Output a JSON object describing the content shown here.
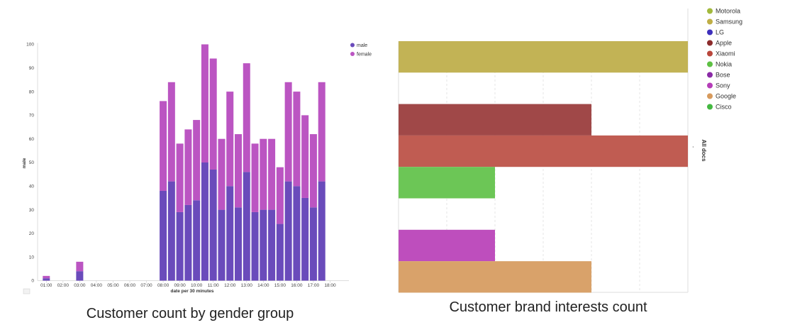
{
  "chart_data": [
    {
      "type": "bar",
      "stacked": true,
      "title": "Customer count by gender group",
      "xlabel": "date per 30 minutes",
      "ylabel": "male",
      "ylim": [
        0,
        100
      ],
      "yticks": [
        0,
        10,
        20,
        30,
        40,
        50,
        60,
        70,
        80,
        90,
        100
      ],
      "xtick_labels": [
        "01:00",
        "02:00",
        "03:00",
        "04:00",
        "05:00",
        "06:00",
        "07:00",
        "08:00",
        "09:00",
        "10:00",
        "11:00",
        "12:00",
        "13:00",
        "14:00",
        "15:00",
        "16:00",
        "17:00",
        "18:00"
      ],
      "categories": [
        "01:00",
        "01:30",
        "02:00",
        "02:30",
        "03:00",
        "03:30",
        "04:00",
        "04:30",
        "05:00",
        "05:30",
        "06:00",
        "06:30",
        "07:00",
        "07:30",
        "08:00",
        "08:30",
        "09:00",
        "09:30",
        "10:00",
        "10:30",
        "11:00",
        "11:30",
        "12:00",
        "12:30",
        "13:00",
        "13:30",
        "14:00",
        "14:30",
        "15:00",
        "15:30",
        "16:00",
        "16:30",
        "17:00",
        "17:30",
        "18:00"
      ],
      "series": [
        {
          "name": "male",
          "color": "#6a4bbb",
          "values": [
            1,
            0,
            0,
            0,
            4,
            0,
            0,
            0,
            0,
            0,
            0,
            0,
            0,
            0,
            38,
            42,
            29,
            32,
            34,
            50,
            47,
            30,
            40,
            31,
            46,
            29,
            30,
            30,
            24,
            42,
            40,
            35,
            31,
            42,
            0
          ]
        },
        {
          "name": "female",
          "color": "#bb55c2",
          "values": [
            1,
            0,
            0,
            0,
            4,
            0,
            0,
            0,
            0,
            0,
            0,
            0,
            0,
            0,
            38,
            42,
            29,
            32,
            34,
            50,
            47,
            30,
            40,
            31,
            46,
            29,
            30,
            30,
            24,
            42,
            40,
            35,
            31,
            42,
            0
          ]
        }
      ],
      "legend_position": "top-right"
    },
    {
      "type": "bar",
      "orientation": "horizontal",
      "title": "Customer brand interests count",
      "ylabel": "All docs",
      "axis_tick_label": "-",
      "legend_position": "right",
      "legend": [
        {
          "name": "Motorola",
          "color": "#a2b93c"
        },
        {
          "name": "Samsung",
          "color": "#bfae46"
        },
        {
          "name": "LG",
          "color": "#3e2fbc"
        },
        {
          "name": "Apple",
          "color": "#8c2b2b"
        },
        {
          "name": "Xiaomi",
          "color": "#b9463b"
        },
        {
          "name": "Nokia",
          "color": "#5dc043"
        },
        {
          "name": "Bose",
          "color": "#8a2aa6"
        },
        {
          "name": "Sony",
          "color": "#b53db8"
        },
        {
          "name": "Google",
          "color": "#d79a5c"
        },
        {
          "name": "Cisco",
          "color": "#44b841"
        }
      ],
      "bars": [
        {
          "name": "Samsung",
          "value": 3,
          "color": "#c2b355"
        },
        {
          "name": "Apple",
          "value": 2,
          "color": "#a04848"
        },
        {
          "name": "Xiaomi",
          "value": 3,
          "color": "#c05c52"
        },
        {
          "name": "Nokia",
          "value": 1,
          "color": "#6cc656"
        },
        {
          "name": "Sony",
          "value": 1,
          "color": "#be4ebd"
        },
        {
          "name": "Google",
          "value": 2,
          "color": "#d9a26a"
        }
      ],
      "xlim": [
        0,
        3
      ]
    }
  ]
}
